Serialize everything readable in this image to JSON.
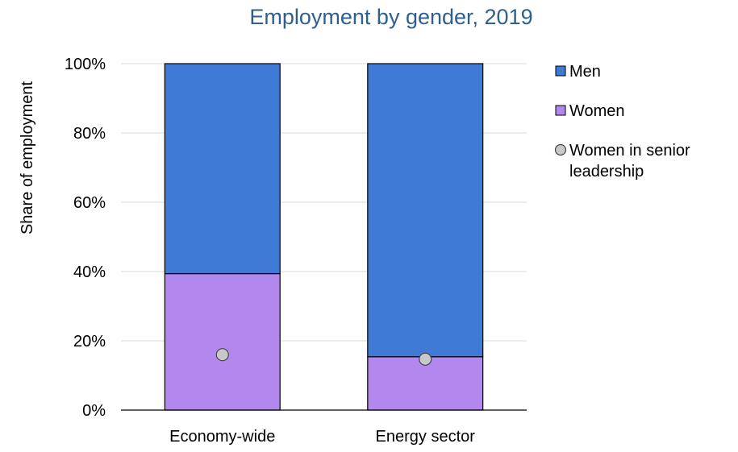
{
  "chart_data": {
    "type": "bar",
    "stacked": true,
    "title": "Employment by gender, 2019",
    "ylabel": "Share of employment",
    "xlabel": "",
    "categories": [
      "Economy-wide",
      "Energy sector"
    ],
    "ylim": [
      0,
      1
    ],
    "yticks": [
      0,
      0.2,
      0.4,
      0.6,
      0.8,
      1.0
    ],
    "ytick_labels": [
      "0%",
      "20%",
      "40%",
      "60%",
      "80%",
      "100%"
    ],
    "series": [
      {
        "name": "Women",
        "kind": "bar",
        "color": "#b388ee",
        "values": [
          0.394,
          0.154
        ]
      },
      {
        "name": "Men",
        "kind": "bar",
        "color": "#3f7ad6",
        "values": [
          0.606,
          0.846
        ]
      },
      {
        "name": "Women in senior leadership",
        "kind": "marker",
        "color": "#c8c8c8",
        "values": [
          0.16,
          0.147
        ]
      }
    ],
    "legend": {
      "position": "right",
      "entries": [
        {
          "label": "Men",
          "color": "#3f7ad6",
          "shape": "square"
        },
        {
          "label": "Women",
          "color": "#b388ee",
          "shape": "square"
        },
        {
          "label": "Women in senior leadership",
          "color": "#c8c8c8",
          "shape": "circle"
        }
      ]
    },
    "grid": true,
    "title_color": "#2e5f8e",
    "gridline_color": "#d9d9d9",
    "axis_color": "#000000"
  }
}
